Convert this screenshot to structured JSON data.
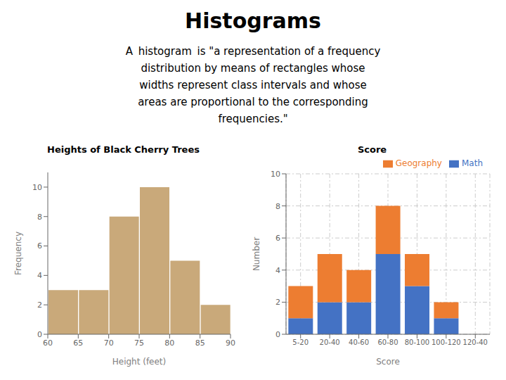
{
  "title": "Histograms",
  "annotations": [
    "A  histogram  is \"a representation of a frequency",
    "distribution by means of rectangles whose",
    "widths represent class intervals and whose",
    "areas are proportional to the corresponding",
    "frequencies.\""
  ],
  "chart_data": [
    {
      "type": "histogram",
      "title": "Heights of Black Cherry Trees",
      "xlabel": "Height (feet)",
      "ylabel": "Frequency",
      "bins": [
        60,
        65,
        70,
        75,
        80,
        85,
        90
      ],
      "values": [
        3,
        3,
        8,
        10,
        5,
        2
      ],
      "color": "#c9a97a",
      "xlim": [
        60,
        90
      ],
      "xticks": [
        60,
        65,
        70,
        75,
        80,
        85,
        90
      ],
      "ylim": [
        0,
        11
      ],
      "yticks": [
        0,
        2,
        4,
        6,
        8,
        10
      ],
      "grid": false
    },
    {
      "type": "bar",
      "stacked": true,
      "title": "Score",
      "xlabel": "Score",
      "ylabel": "Number",
      "categories": [
        "5-20",
        "20-40",
        "40-60",
        "60-80",
        "80-100",
        "100-120",
        "120-40"
      ],
      "series": [
        {
          "name": "Math",
          "color": "#4472c4",
          "values": [
            1,
            2,
            2,
            5,
            3,
            1,
            0
          ]
        },
        {
          "name": "Geography",
          "color": "#ed7d31",
          "values": [
            2,
            3,
            2,
            3,
            2,
            1,
            0
          ]
        }
      ],
      "ylim": [
        0,
        10
      ],
      "yticks": [
        0,
        2,
        4,
        6,
        8,
        10
      ],
      "grid": true,
      "legend": "upper right"
    }
  ]
}
